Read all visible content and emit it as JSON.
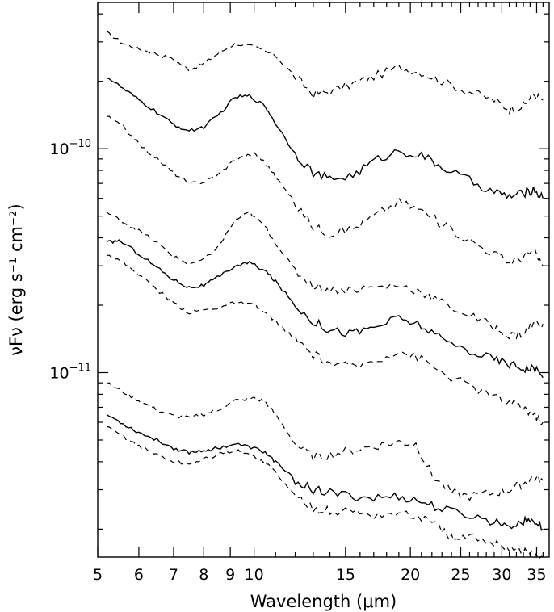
{
  "chart_data": {
    "type": "line",
    "xlabel": "Wavelength (μm)",
    "ylabel": "νFν (erg s⁻¹ cm⁻²)",
    "xscale": "log",
    "yscale": "log",
    "xlim": [
      5,
      37
    ],
    "ylim": [
      1.5e-12,
      4.5e-10
    ],
    "grid": false,
    "legend": "none",
    "x_ticks": [
      5,
      6,
      7,
      8,
      9,
      10,
      15,
      20,
      25,
      30,
      35
    ],
    "x_tick_labels": [
      "5",
      "6",
      "7",
      "8",
      "9",
      "10",
      "15",
      "20",
      "25",
      "30",
      "35"
    ],
    "y_ticks": [
      1e-11,
      1e-10
    ],
    "y_tick_labels": [
      {
        "base": "10",
        "exp": "−11"
      },
      {
        "base": "10",
        "exp": "−10"
      }
    ],
    "series": [
      {
        "style": "dashed",
        "points": [
          [
            5.2,
            3.3e-10
          ],
          [
            5.6,
            2.95e-10
          ],
          [
            6,
            2.8e-10
          ],
          [
            6.5,
            2.65e-10
          ],
          [
            7,
            2.5e-10
          ],
          [
            7.5,
            2.25e-10
          ],
          [
            8,
            2.4e-10
          ],
          [
            8.5,
            2.65e-10
          ],
          [
            9.2,
            2.95e-10
          ],
          [
            10,
            2.85e-10
          ],
          [
            11,
            2.6e-10
          ],
          [
            12,
            2.1e-10
          ],
          [
            13,
            1.75e-10
          ],
          [
            14,
            1.8e-10
          ],
          [
            15.5,
            1.95e-10
          ],
          [
            17,
            2.1e-10
          ],
          [
            19,
            2.3e-10
          ],
          [
            21,
            2.2e-10
          ],
          [
            23,
            2e-10
          ],
          [
            26,
            1.8e-10
          ],
          [
            29,
            1.65e-10
          ],
          [
            31,
            1.5e-10
          ],
          [
            33,
            1.55e-10
          ],
          [
            34.5,
            1.75e-10
          ],
          [
            36,
            1.65e-10
          ]
        ]
      },
      {
        "style": "solid",
        "points": [
          [
            5.2,
            2.1e-10
          ],
          [
            5.6,
            1.85e-10
          ],
          [
            6,
            1.65e-10
          ],
          [
            6.5,
            1.45e-10
          ],
          [
            7,
            1.28e-10
          ],
          [
            7.5,
            1.2e-10
          ],
          [
            8,
            1.25e-10
          ],
          [
            8.5,
            1.4e-10
          ],
          [
            9.2,
            1.7e-10
          ],
          [
            9.8,
            1.72e-10
          ],
          [
            10.5,
            1.55e-10
          ],
          [
            11,
            1.3e-10
          ],
          [
            12,
            9.5e-11
          ],
          [
            13,
            7.8e-11
          ],
          [
            14,
            7.3e-11
          ],
          [
            15.5,
            7.6e-11
          ],
          [
            17,
            8.8e-11
          ],
          [
            19,
            9.8e-11
          ],
          [
            21,
            9.3e-11
          ],
          [
            23,
            8.3e-11
          ],
          [
            26,
            7.2e-11
          ],
          [
            29,
            6.4e-11
          ],
          [
            31,
            6.1e-11
          ],
          [
            33,
            6.3e-11
          ],
          [
            34.5,
            6.6e-11
          ],
          [
            36,
            6e-11
          ]
        ]
      },
      {
        "style": "dashed",
        "points": [
          [
            5.2,
            1.4e-10
          ],
          [
            5.6,
            1.25e-10
          ],
          [
            6,
            1.05e-10
          ],
          [
            6.5,
            9e-11
          ],
          [
            7,
            7.8e-11
          ],
          [
            7.5,
            7e-11
          ],
          [
            8,
            7.1e-11
          ],
          [
            8.5,
            7.6e-11
          ],
          [
            9.2,
            9e-11
          ],
          [
            10,
            9.5e-11
          ],
          [
            10.5,
            8.7e-11
          ],
          [
            11,
            7.5e-11
          ],
          [
            12,
            5.7e-11
          ],
          [
            13,
            4.5e-11
          ],
          [
            14,
            4.2e-11
          ],
          [
            15.5,
            4.4e-11
          ],
          [
            17,
            5e-11
          ],
          [
            19,
            5.8e-11
          ],
          [
            21,
            5.3e-11
          ],
          [
            23,
            4.6e-11
          ],
          [
            26,
            3.9e-11
          ],
          [
            29,
            3.4e-11
          ],
          [
            31,
            3.1e-11
          ],
          [
            33,
            3.3e-11
          ],
          [
            34.5,
            3.5e-11
          ],
          [
            36,
            3e-11
          ]
        ]
      },
      {
        "style": "dashed",
        "points": [
          [
            5.2,
            5.2e-11
          ],
          [
            5.6,
            4.7e-11
          ],
          [
            6,
            4.3e-11
          ],
          [
            6.5,
            3.8e-11
          ],
          [
            7,
            3.3e-11
          ],
          [
            7.5,
            3.05e-11
          ],
          [
            8,
            3.2e-11
          ],
          [
            8.5,
            3.6e-11
          ],
          [
            9.2,
            4.8e-11
          ],
          [
            9.8,
            5.2e-11
          ],
          [
            10.5,
            4.5e-11
          ],
          [
            11,
            3.8e-11
          ],
          [
            12,
            2.85e-11
          ],
          [
            13,
            2.45e-11
          ],
          [
            14,
            2.35e-11
          ],
          [
            15.5,
            2.35e-11
          ],
          [
            17,
            2.4e-11
          ],
          [
            19,
            2.45e-11
          ],
          [
            21,
            2.3e-11
          ],
          [
            23,
            2.05e-11
          ],
          [
            26,
            1.8e-11
          ],
          [
            29,
            1.6e-11
          ],
          [
            31,
            1.45e-11
          ],
          [
            33,
            1.5e-11
          ],
          [
            34.5,
            1.65e-11
          ],
          [
            36,
            1.65e-11
          ]
        ]
      },
      {
        "style": "solid",
        "points": [
          [
            5.2,
            3.8e-11
          ],
          [
            5.5,
            3.9e-11
          ],
          [
            6,
            3.4e-11
          ],
          [
            6.5,
            2.95e-11
          ],
          [
            7,
            2.6e-11
          ],
          [
            7.5,
            2.4e-11
          ],
          [
            8,
            2.45e-11
          ],
          [
            8.5,
            2.65e-11
          ],
          [
            9.2,
            3e-11
          ],
          [
            9.8,
            3.1e-11
          ],
          [
            10.5,
            2.85e-11
          ],
          [
            11,
            2.55e-11
          ],
          [
            12,
            2e-11
          ],
          [
            13,
            1.7e-11
          ],
          [
            14,
            1.55e-11
          ],
          [
            15.5,
            1.5e-11
          ],
          [
            17,
            1.6e-11
          ],
          [
            19,
            1.75e-11
          ],
          [
            21,
            1.62e-11
          ],
          [
            23,
            1.4e-11
          ],
          [
            26,
            1.25e-11
          ],
          [
            29,
            1.15e-11
          ],
          [
            31,
            1.1e-11
          ],
          [
            33,
            1.05e-11
          ],
          [
            34.5,
            1.05e-11
          ],
          [
            36,
            9.5e-12
          ]
        ]
      },
      {
        "style": "dashed",
        "points": [
          [
            5.2,
            3.4e-11
          ],
          [
            5.6,
            3.1e-11
          ],
          [
            6,
            2.75e-11
          ],
          [
            6.5,
            2.35e-11
          ],
          [
            7,
            2.05e-11
          ],
          [
            7.5,
            1.85e-11
          ],
          [
            8,
            1.9e-11
          ],
          [
            8.5,
            1.95e-11
          ],
          [
            9.2,
            2.05e-11
          ],
          [
            10,
            2e-11
          ],
          [
            10.5,
            1.85e-11
          ],
          [
            11,
            1.7e-11
          ],
          [
            12,
            1.4e-11
          ],
          [
            13,
            1.2e-11
          ],
          [
            14,
            1.1e-11
          ],
          [
            15.5,
            1.05e-11
          ],
          [
            17,
            1.13e-11
          ],
          [
            19,
            1.25e-11
          ],
          [
            21,
            1.15e-11
          ],
          [
            23,
            1e-11
          ],
          [
            26,
            8.7e-12
          ],
          [
            29,
            7.8e-12
          ],
          [
            31,
            7.3e-12
          ],
          [
            33,
            7e-12
          ],
          [
            34.5,
            6.5e-12
          ],
          [
            36,
            6e-12
          ]
        ]
      },
      {
        "style": "dashed",
        "points": [
          [
            5.2,
            9e-12
          ],
          [
            5.6,
            8.2e-12
          ],
          [
            6,
            7.5e-12
          ],
          [
            6.5,
            6.8e-12
          ],
          [
            7,
            6.4e-12
          ],
          [
            7.5,
            6.3e-12
          ],
          [
            8,
            6.5e-12
          ],
          [
            8.5,
            6.8e-12
          ],
          [
            9.2,
            7.5e-12
          ],
          [
            10,
            7.7e-12
          ],
          [
            10.5,
            7.4e-12
          ],
          [
            11,
            6.5e-12
          ],
          [
            12,
            4.8e-12
          ],
          [
            13,
            4.2e-12
          ],
          [
            14,
            4.3e-12
          ],
          [
            15.5,
            4.5e-12
          ],
          [
            17,
            4.7e-12
          ],
          [
            19,
            4.9e-12
          ],
          [
            20.5,
            4.8e-12
          ],
          [
            22,
            3.5e-12
          ],
          [
            24,
            2.9e-12
          ],
          [
            26,
            2.8e-12
          ],
          [
            29,
            2.9e-12
          ],
          [
            31,
            3e-12
          ],
          [
            33,
            3.2e-12
          ],
          [
            34.5,
            3.4e-12
          ],
          [
            36,
            3.3e-12
          ]
        ]
      },
      {
        "style": "solid",
        "points": [
          [
            5.2,
            6.5e-12
          ],
          [
            5.6,
            5.9e-12
          ],
          [
            6,
            5.4e-12
          ],
          [
            6.5,
            5e-12
          ],
          [
            7,
            4.6e-12
          ],
          [
            7.5,
            4.4e-12
          ],
          [
            8,
            4.5e-12
          ],
          [
            8.5,
            4.6e-12
          ],
          [
            9.2,
            4.8e-12
          ],
          [
            10,
            4.6e-12
          ],
          [
            10.5,
            4.4e-12
          ],
          [
            11,
            4e-12
          ],
          [
            12,
            3.3e-12
          ],
          [
            13,
            3e-12
          ],
          [
            14,
            2.9e-12
          ],
          [
            15.5,
            2.8e-12
          ],
          [
            17,
            2.75e-12
          ],
          [
            19,
            2.8e-12
          ],
          [
            21,
            2.65e-12
          ],
          [
            23,
            2.45e-12
          ],
          [
            26,
            2.3e-12
          ],
          [
            29,
            2.15e-12
          ],
          [
            31,
            2.1e-12
          ],
          [
            33,
            2.15e-12
          ],
          [
            34.5,
            2.2e-12
          ],
          [
            36,
            2e-12
          ]
        ]
      },
      {
        "style": "dashed",
        "points": [
          [
            5.2,
            5.7e-12
          ],
          [
            5.6,
            5.2e-12
          ],
          [
            6,
            4.7e-12
          ],
          [
            6.5,
            4.3e-12
          ],
          [
            7,
            4e-12
          ],
          [
            7.5,
            3.9e-12
          ],
          [
            8,
            4.1e-12
          ],
          [
            8.5,
            4.3e-12
          ],
          [
            9.2,
            4.5e-12
          ],
          [
            10,
            4.2e-12
          ],
          [
            10.5,
            4e-12
          ],
          [
            11,
            3.6e-12
          ],
          [
            12,
            2.8e-12
          ],
          [
            13,
            2.5e-12
          ],
          [
            14,
            2.4e-12
          ],
          [
            15.5,
            2.4e-12
          ],
          [
            17,
            2.3e-12
          ],
          [
            19,
            2.35e-12
          ],
          [
            21,
            2.25e-12
          ],
          [
            23,
            2e-12
          ],
          [
            24.5,
            1.75e-12
          ],
          [
            26,
            1.85e-12
          ],
          [
            29,
            1.75e-12
          ],
          [
            31,
            1.65e-12
          ],
          [
            33,
            1.6e-12
          ],
          [
            34.5,
            1.55e-12
          ],
          [
            36,
            1.5e-12
          ]
        ]
      }
    ]
  }
}
